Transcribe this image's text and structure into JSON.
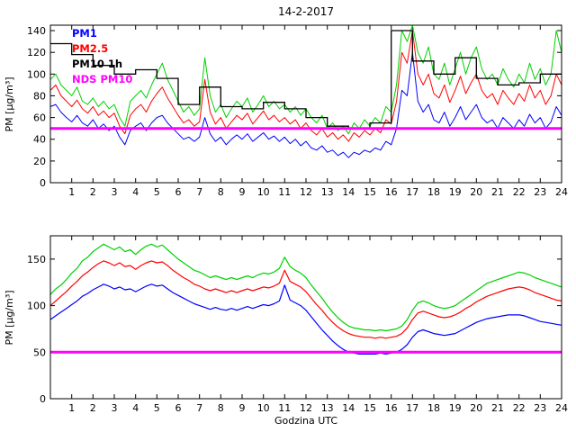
{
  "figure": {
    "title": "14-2-2017",
    "background": "#ffffff"
  },
  "chart_data": [
    {
      "type": "line",
      "title": "14-2-2017",
      "ylabel": "PM [µg/m³]",
      "xlabel": "",
      "xlim": [
        0,
        24
      ],
      "ylim": [
        0,
        145
      ],
      "xticks": [
        1,
        2,
        3,
        4,
        5,
        6,
        7,
        8,
        9,
        10,
        11,
        12,
        13,
        14,
        15,
        16,
        17,
        18,
        19,
        20,
        21,
        22,
        23,
        24
      ],
      "yticks": [
        0,
        20,
        40,
        60,
        80,
        100,
        120,
        140
      ],
      "grid": false,
      "legend_position": "top-left",
      "x_start": 0,
      "x_step": 0.25,
      "series": [
        {
          "name": "PM10",
          "color": "#00d000",
          "width": 1,
          "values": [
            95,
            100,
            90,
            85,
            80,
            88,
            75,
            72,
            78,
            70,
            75,
            68,
            72,
            60,
            52,
            75,
            80,
            85,
            78,
            90,
            100,
            110,
            95,
            85,
            75,
            65,
            70,
            62,
            68,
            115,
            80,
            65,
            72,
            60,
            68,
            75,
            70,
            78,
            65,
            72,
            80,
            70,
            75,
            68,
            72,
            65,
            70,
            62,
            68,
            60,
            55,
            62,
            50,
            55,
            48,
            52,
            45,
            55,
            50,
            58,
            52,
            60,
            55,
            70,
            65,
            90,
            140,
            130,
            145,
            120,
            110,
            125,
            100,
            95,
            110,
            90,
            105,
            120,
            100,
            115,
            125,
            105,
            95,
            100,
            90,
            105,
            95,
            88,
            100,
            92,
            110,
            95,
            105,
            90,
            100,
            140,
            120
          ]
        },
        {
          "name": "PM2.5",
          "color": "#ff0000",
          "width": 1,
          "values": [
            85,
            90,
            80,
            75,
            70,
            76,
            68,
            64,
            70,
            62,
            66,
            60,
            64,
            52,
            45,
            62,
            68,
            72,
            65,
            75,
            82,
            88,
            78,
            70,
            62,
            55,
            58,
            52,
            56,
            95,
            65,
            54,
            60,
            50,
            56,
            62,
            58,
            64,
            54,
            60,
            66,
            58,
            62,
            56,
            60,
            54,
            58,
            50,
            55,
            48,
            44,
            50,
            42,
            46,
            40,
            44,
            38,
            46,
            42,
            48,
            44,
            50,
            46,
            58,
            54,
            75,
            120,
            110,
            140,
            100,
            90,
            100,
            82,
            78,
            90,
            74,
            85,
            98,
            82,
            92,
            100,
            85,
            78,
            82,
            72,
            85,
            78,
            72,
            82,
            75,
            90,
            78,
            85,
            72,
            80,
            100,
            90
          ]
        },
        {
          "name": "PM1",
          "color": "#0000ff",
          "width": 1,
          "values": [
            70,
            72,
            65,
            60,
            56,
            62,
            55,
            52,
            58,
            50,
            54,
            48,
            52,
            42,
            35,
            48,
            52,
            55,
            48,
            55,
            60,
            62,
            55,
            50,
            45,
            40,
            42,
            38,
            42,
            60,
            45,
            38,
            42,
            35,
            40,
            44,
            40,
            45,
            38,
            42,
            46,
            40,
            43,
            38,
            42,
            36,
            40,
            34,
            38,
            32,
            30,
            34,
            28,
            30,
            25,
            28,
            23,
            28,
            26,
            30,
            28,
            32,
            30,
            38,
            35,
            50,
            85,
            80,
            120,
            75,
            65,
            72,
            58,
            55,
            65,
            52,
            60,
            70,
            58,
            65,
            72,
            60,
            55,
            58,
            50,
            60,
            55,
            50,
            58,
            52,
            63,
            55,
            60,
            50,
            56,
            70,
            62
          ]
        }
      ],
      "stairs": {
        "name": "PM10 1h",
        "color": "#000000",
        "width": 1.3,
        "hourly_values": [
          128,
          118,
          108,
          100,
          104,
          96,
          72,
          88,
          70,
          68,
          74,
          68,
          60,
          52,
          50,
          55,
          140,
          112,
          100,
          115,
          96,
          90,
          92,
          100
        ]
      },
      "threshold": {
        "name": "NDS PM10",
        "color": "#ff00ff",
        "value": 50,
        "width": 3
      },
      "legend": [
        {
          "label": "PM1",
          "color": "#0000ff"
        },
        {
          "label": "PM2.5",
          "color": "#ff0000"
        },
        {
          "label": "PM10 1h",
          "color": "#000000"
        },
        {
          "label": "NDS PM10",
          "color": "#ff00ff"
        }
      ]
    },
    {
      "type": "line",
      "title": "",
      "ylabel": "PM [µg/m³]",
      "xlabel": "Godzina UTC",
      "xlim": [
        0,
        24
      ],
      "ylim": [
        0,
        175
      ],
      "xticks": [
        1,
        2,
        3,
        4,
        5,
        6,
        7,
        8,
        9,
        10,
        11,
        12,
        13,
        14,
        15,
        16,
        17,
        18,
        19,
        20,
        21,
        22,
        23,
        24
      ],
      "yticks": [
        0,
        50,
        100,
        150
      ],
      "grid": false,
      "x_start": 0,
      "x_step": 0.25,
      "series": [
        {
          "name": "PM10",
          "color": "#00d000",
          "width": 1.2,
          "values": [
            112,
            118,
            122,
            128,
            135,
            140,
            148,
            152,
            158,
            162,
            166,
            163,
            160,
            163,
            158,
            160,
            155,
            160,
            164,
            166,
            163,
            165,
            160,
            155,
            150,
            146,
            142,
            138,
            136,
            133,
            130,
            132,
            130,
            128,
            130,
            128,
            130,
            132,
            130,
            133,
            135,
            134,
            136,
            140,
            152,
            142,
            138,
            135,
            130,
            122,
            115,
            108,
            100,
            93,
            87,
            82,
            78,
            76,
            75,
            74,
            74,
            73,
            74,
            73,
            74,
            75,
            78,
            85,
            95,
            103,
            105,
            103,
            100,
            98,
            97,
            98,
            100,
            104,
            108,
            112,
            116,
            120,
            124,
            126,
            128,
            130,
            132,
            134,
            136,
            135,
            133,
            130,
            128,
            126,
            124,
            122,
            120
          ]
        },
        {
          "name": "PM2.5",
          "color": "#ff0000",
          "width": 1.2,
          "values": [
            100,
            105,
            110,
            115,
            121,
            126,
            132,
            136,
            141,
            145,
            148,
            146,
            143,
            146,
            142,
            143,
            139,
            143,
            146,
            148,
            146,
            147,
            143,
            138,
            134,
            130,
            127,
            123,
            121,
            118,
            116,
            118,
            116,
            114,
            116,
            114,
            116,
            118,
            116,
            118,
            120,
            119,
            121,
            124,
            138,
            126,
            123,
            120,
            115,
            108,
            101,
            95,
            88,
            82,
            77,
            73,
            70,
            68,
            67,
            66,
            66,
            65,
            66,
            65,
            66,
            67,
            70,
            76,
            85,
            92,
            94,
            92,
            90,
            88,
            87,
            88,
            90,
            93,
            97,
            100,
            104,
            107,
            110,
            112,
            114,
            116,
            118,
            119,
            120,
            119,
            117,
            114,
            112,
            110,
            108,
            106,
            105
          ]
        },
        {
          "name": "PM1",
          "color": "#0000ff",
          "width": 1.2,
          "values": [
            85,
            89,
            93,
            97,
            101,
            105,
            110,
            113,
            117,
            120,
            123,
            121,
            118,
            120,
            117,
            118,
            115,
            118,
            121,
            123,
            121,
            122,
            118,
            114,
            111,
            108,
            105,
            102,
            100,
            98,
            96,
            98,
            96,
            95,
            97,
            95,
            97,
            99,
            97,
            99,
            101,
            100,
            102,
            105,
            122,
            106,
            103,
            100,
            95,
            88,
            81,
            74,
            68,
            62,
            57,
            53,
            50,
            49,
            48,
            48,
            48,
            48,
            49,
            48,
            49,
            50,
            53,
            58,
            66,
            72,
            74,
            72,
            70,
            69,
            68,
            69,
            70,
            73,
            76,
            79,
            82,
            84,
            86,
            87,
            88,
            89,
            90,
            90,
            90,
            89,
            87,
            85,
            83,
            82,
            81,
            80,
            79
          ]
        }
      ],
      "threshold": {
        "name": "NDS PM10",
        "color": "#ff00ff",
        "value": 50,
        "width": 3
      }
    }
  ]
}
